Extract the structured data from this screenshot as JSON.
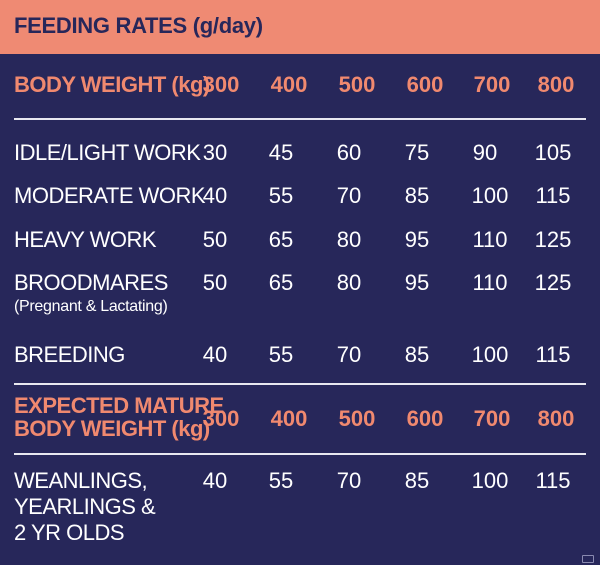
{
  "header": {
    "title": "FEEDING RATES (g/day)"
  },
  "body_weight": {
    "label": "BODY WEIGHT (kg)",
    "values": [
      "300",
      "400",
      "500",
      "600",
      "700",
      "800"
    ]
  },
  "rows": [
    {
      "label": "IDLE/LIGHT WORK",
      "sublabel": "",
      "values": [
        "30",
        "45",
        "60",
        "75",
        "90",
        "105"
      ]
    },
    {
      "label": "MODERATE WORK",
      "sublabel": "",
      "values": [
        "40",
        "55",
        "70",
        "85",
        "100",
        "115"
      ]
    },
    {
      "label": "HEAVY WORK",
      "sublabel": "",
      "values": [
        "50",
        "65",
        "80",
        "95",
        "110",
        "125"
      ]
    },
    {
      "label": "BROODMARES",
      "sublabel": "(Pregnant & Lactating)",
      "values": [
        "50",
        "65",
        "80",
        "95",
        "110",
        "125"
      ]
    },
    {
      "label": "BREEDING",
      "sublabel": "",
      "values": [
        "40",
        "55",
        "70",
        "85",
        "100",
        "115"
      ]
    }
  ],
  "mature_weight": {
    "label_line1": "EXPECTED MATURE",
    "label_line2": "BODY WEIGHT (kg)",
    "values": [
      "300",
      "400",
      "500",
      "600",
      "700",
      "800"
    ]
  },
  "young_row": {
    "label_line1": "WEANLINGS,",
    "label_line2": "YEARLINGS &",
    "label_line3": "2 YR OLDS",
    "values": [
      "40",
      "55",
      "70",
      "85",
      "100",
      "115"
    ]
  }
}
